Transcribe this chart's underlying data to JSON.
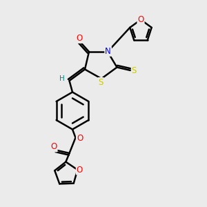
{
  "bg_color": "#ebebeb",
  "bond_color": "#000000",
  "bond_width": 1.8,
  "atom_colors": {
    "O": "#ff0000",
    "N": "#0000ff",
    "S": "#cccc00",
    "H": "#008888",
    "C": "#000000"
  },
  "font_size": 8.5,
  "fig_width": 3.0,
  "fig_height": 3.0,
  "dpi": 100
}
